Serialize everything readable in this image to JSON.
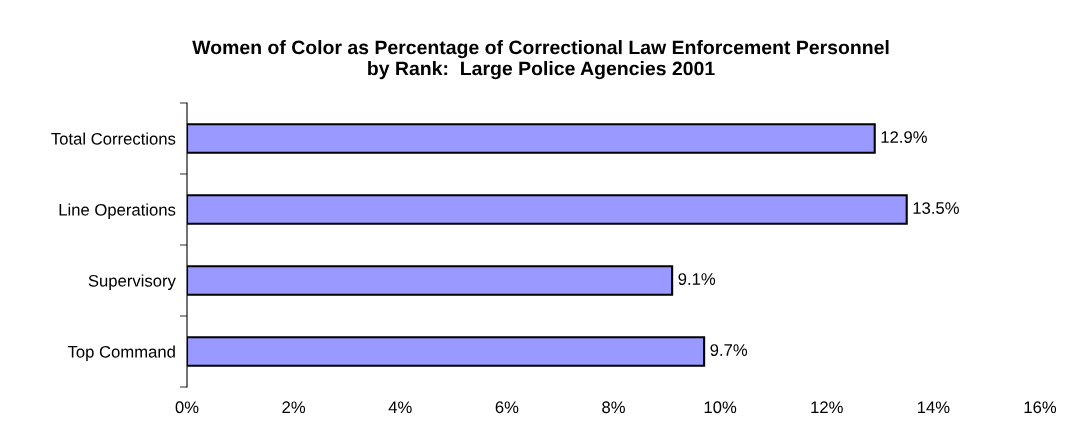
{
  "chart_data": {
    "type": "bar",
    "orientation": "horizontal",
    "title": "Women of Color as Percentage of Correctional Law Enforcement Personnel\nby Rank:  Large Police Agencies 2001",
    "categories": [
      "Total Corrections",
      "Line Operations",
      "Supervisory",
      "Top Command"
    ],
    "values": [
      12.9,
      13.5,
      9.1,
      9.7
    ],
    "value_labels": [
      "12.9%",
      "13.5%",
      "9.1%",
      "9.7%"
    ],
    "color": "#9999ff",
    "xlim": [
      0,
      16
    ],
    "xticks": [
      {
        "value": 0,
        "label": "0%"
      },
      {
        "value": 2,
        "label": "2%"
      },
      {
        "value": 4,
        "label": "4%"
      },
      {
        "value": 6,
        "label": "6%"
      },
      {
        "value": 8,
        "label": "8%"
      },
      {
        "value": 10,
        "label": "10%"
      },
      {
        "value": 12,
        "label": "12%"
      },
      {
        "value": 14,
        "label": "14%"
      },
      {
        "value": 16,
        "label": "16%"
      }
    ],
    "grid": false
  }
}
